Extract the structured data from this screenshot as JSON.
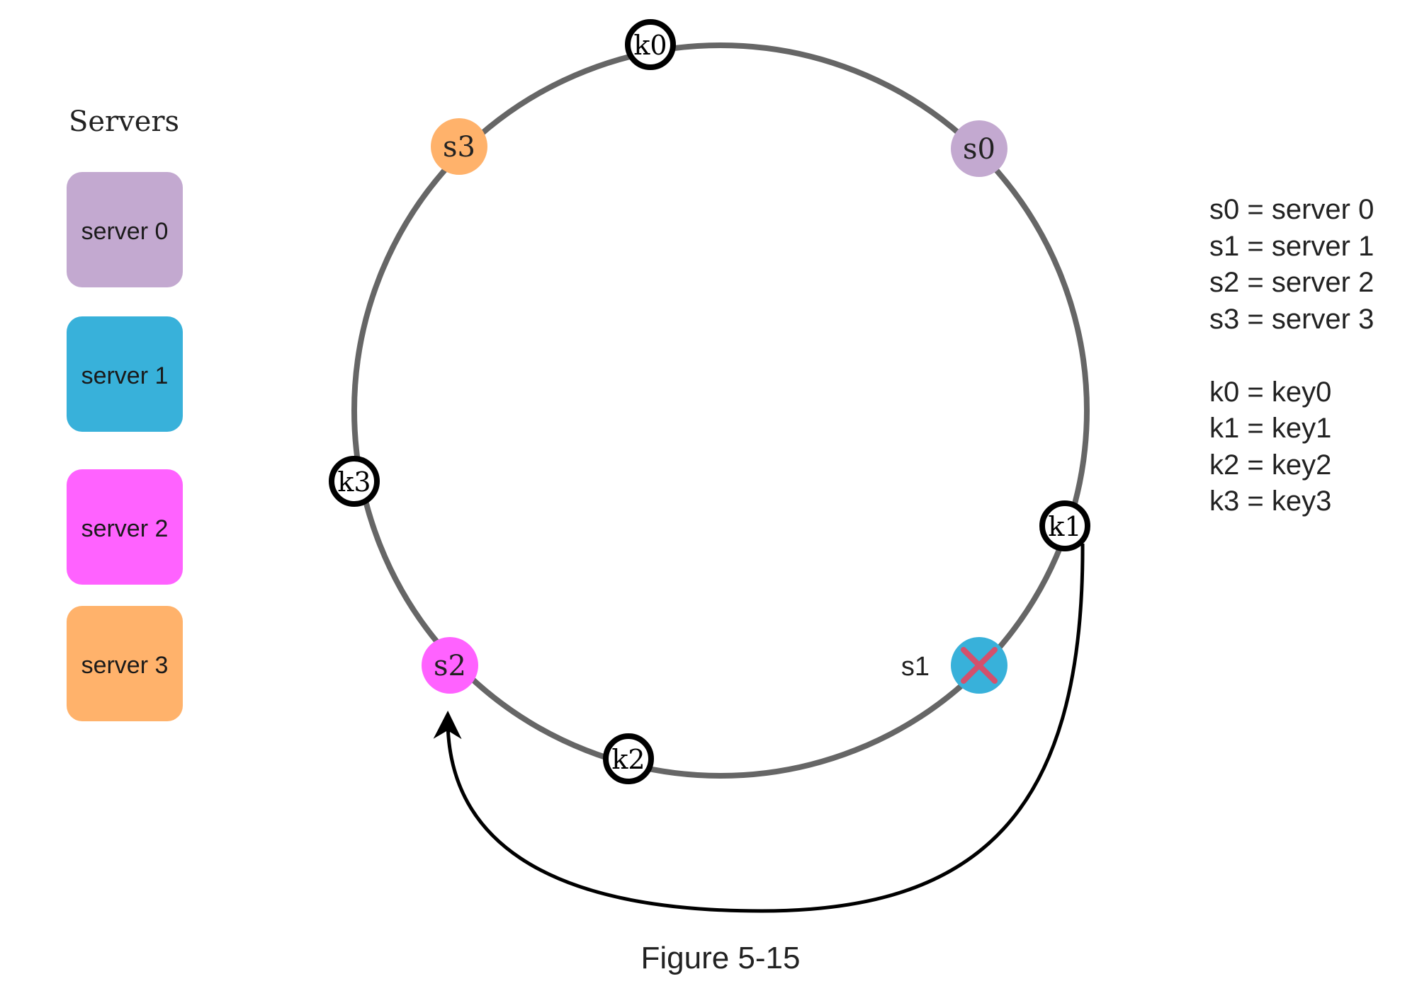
{
  "legend": {
    "title": "Servers",
    "items": [
      {
        "label": "server 0",
        "color": "#C3A9D0"
      },
      {
        "label": "server 1",
        "color": "#38B1DA"
      },
      {
        "label": "server 2",
        "color": "#FF62FF"
      },
      {
        "label": "server 3",
        "color": "#FFB26B"
      }
    ]
  },
  "ring": {
    "color": "#666666",
    "servers": [
      {
        "label": "s0",
        "color": "#C3A9D0"
      },
      {
        "label": "s1",
        "color": "#38B1DA",
        "removed": true,
        "removed_mark_color": "#D4506C"
      },
      {
        "label": "s2",
        "color": "#FF62FF"
      },
      {
        "label": "s3",
        "color": "#FFB26B"
      }
    ],
    "keys": [
      {
        "label": "k0"
      },
      {
        "label": "k1"
      },
      {
        "label": "k2"
      },
      {
        "label": "k3"
      }
    ],
    "removed_server_label": "s1",
    "arrow_icon": "curved-arrow"
  },
  "notes": {
    "servers": [
      "s0 = server 0",
      "s1 = server 1",
      "s2 = server 2",
      "s3 = server 3"
    ],
    "keys": [
      "k0 = key0",
      "k1 = key1",
      "k2 = key2",
      "k3 = key3"
    ]
  },
  "caption": "Figure 5-15"
}
